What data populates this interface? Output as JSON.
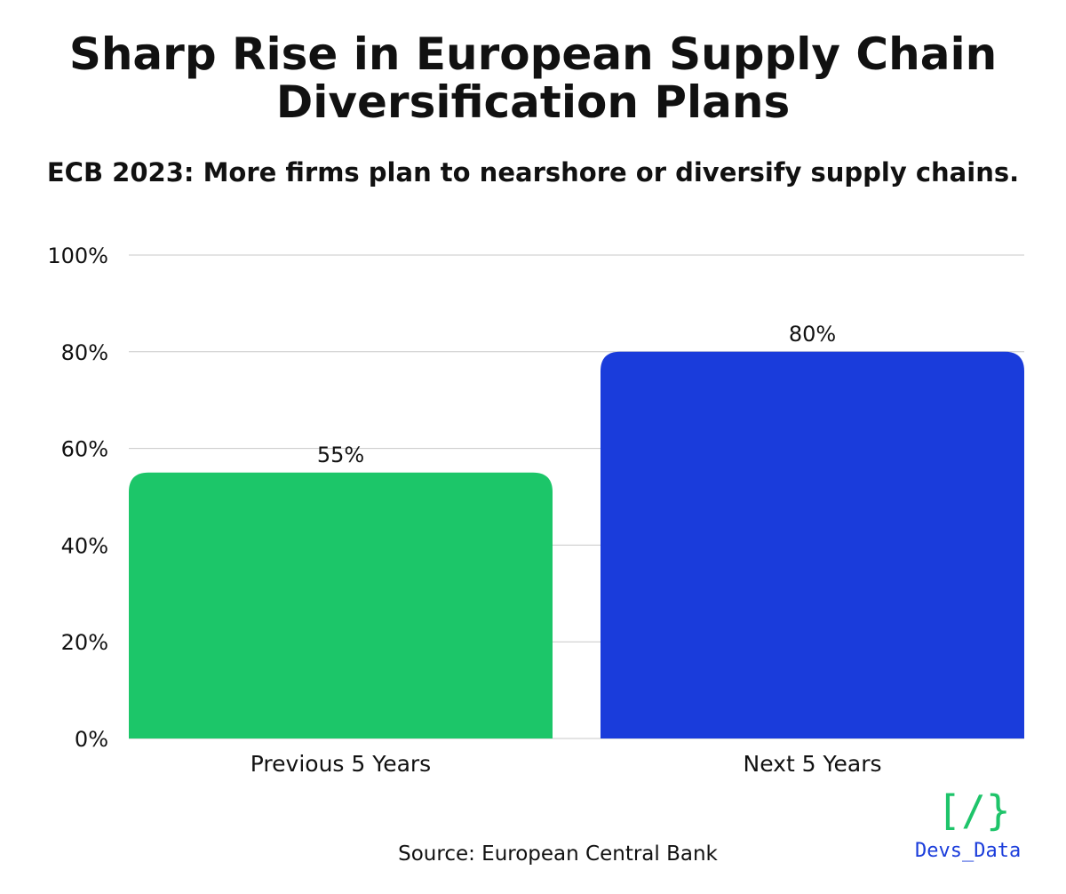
{
  "header": {
    "title_line1": "Sharp Rise in European Supply Chain",
    "title_line2": "Diversification Plans",
    "subtitle": "ECB 2023: More firms plan to nearshore or diversify supply chains."
  },
  "chart_data": {
    "type": "bar",
    "title": "Sharp Rise in European Supply Chain Diversification Plans",
    "subtitle": "ECB 2023: More firms plan to nearshore or diversify supply chains.",
    "categories": [
      "Previous 5 Years",
      "Next 5 Years"
    ],
    "values": [
      55,
      80
    ],
    "value_labels": [
      "55%",
      "80%"
    ],
    "bar_colors": [
      "#1cc669",
      "#1a3cdb"
    ],
    "yticks": [
      "0%",
      "20%",
      "40%",
      "60%",
      "80%",
      "100%"
    ],
    "ylim": [
      0,
      100
    ],
    "xlabel": "",
    "ylabel": "",
    "grid": true,
    "legend": "none"
  },
  "footer": {
    "source": "Source: European Central Bank",
    "logo_mark": "[/}",
    "logo_text": "Devs_Data"
  },
  "colors": {
    "green": "#1cc669",
    "blue": "#1a3cdb",
    "grid": "#c8c8c8"
  }
}
